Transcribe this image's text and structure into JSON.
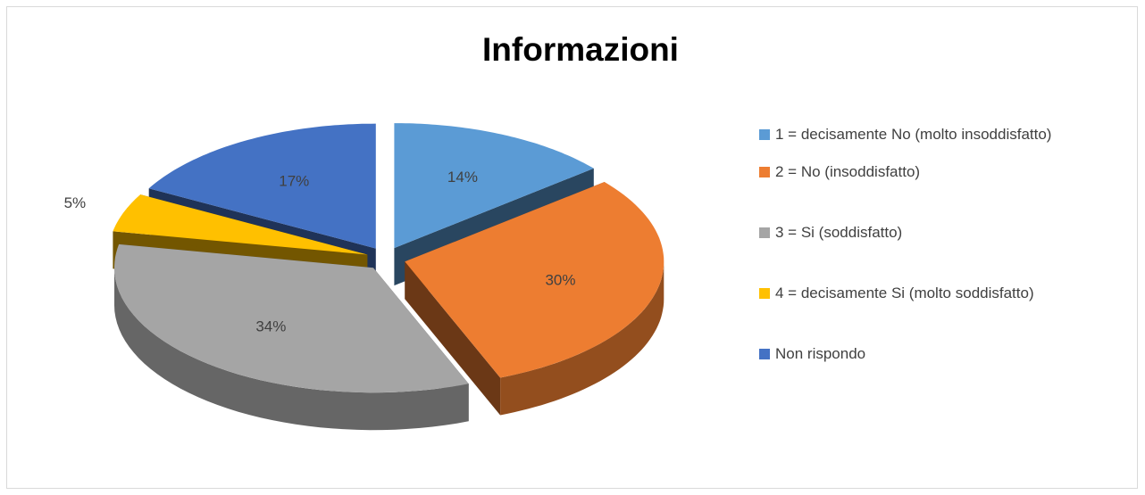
{
  "chart_data": {
    "type": "pie",
    "title": "Informazioni",
    "categories": [
      "1 = decisamente No (molto insoddisfatto)",
      "2 = No (insoddisfatto)",
      "3 = Si (soddisfatto)",
      "4 = decisamente Si (molto soddisfatto)",
      "Non rispondo"
    ],
    "values": [
      14,
      30,
      34,
      5,
      17
    ],
    "value_labels": [
      "14%",
      "30%",
      "34%",
      "5%",
      "17%"
    ],
    "colors": [
      "#5b9bd5",
      "#ed7d31",
      "#a5a5a5",
      "#ffc000",
      "#4472c4"
    ],
    "legend": "right"
  }
}
